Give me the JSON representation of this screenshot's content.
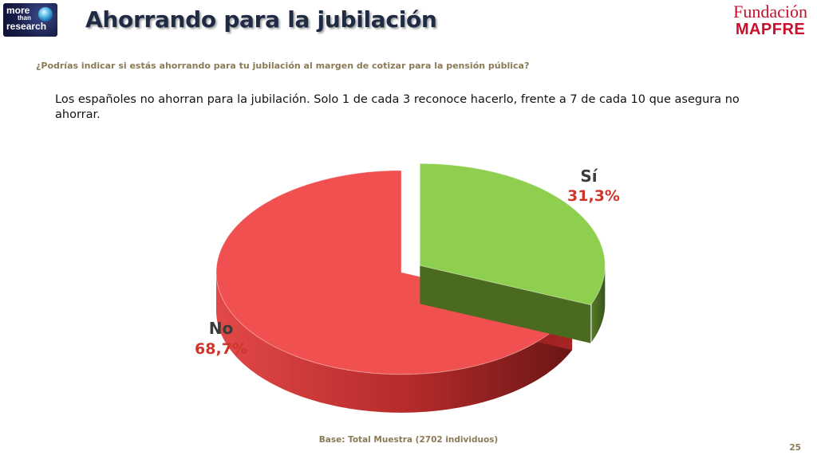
{
  "header": {
    "logo_line1": "more",
    "logo_line2": "than",
    "logo_line3": "research",
    "title": "Ahorrando para la jubilación",
    "brand_top": "Fundación",
    "brand_bottom": "MAPFRE"
  },
  "question": "¿Podrías indicar si estás ahorrando para tu jubilación al margen de cotizar para la pensión pública?",
  "summary": "Los españoles no ahorran para la jubilación. Solo 1 de cada 3 reconoce hacerlo, frente a 7 de cada 10 que asegura no ahorrar.",
  "chart_data": {
    "type": "pie",
    "style": "3d-exploded",
    "categories": [
      "Sí",
      "No"
    ],
    "values": [
      31.3,
      68.7
    ],
    "value_labels": [
      "31,3%",
      "68,7%"
    ],
    "colors": [
      "#8fcf4f",
      "#f05050"
    ],
    "label_value_color": "#d0352a"
  },
  "footer": {
    "base": "Base: Total Muestra (2702 individuos)",
    "page": "25"
  }
}
